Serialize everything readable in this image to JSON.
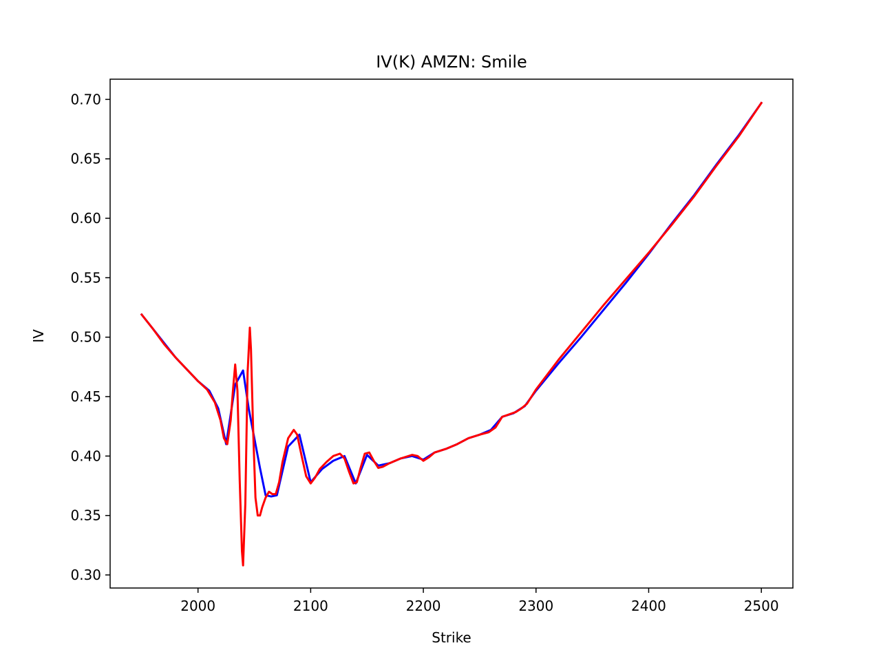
{
  "chart_data": {
    "type": "line",
    "title": "IV(K) AMZN: Smile",
    "xlabel": "Strike",
    "ylabel": "IV",
    "xlim": [
      1922,
      2528
    ],
    "ylim": [
      0.289,
      0.717
    ],
    "xticks": [
      2000,
      2100,
      2200,
      2300,
      2400,
      2500
    ],
    "yticks": [
      0.3,
      0.35,
      0.4,
      0.45,
      0.5,
      0.55,
      0.6,
      0.65,
      0.7
    ],
    "xtick_labels": [
      "2000",
      "2100",
      "2200",
      "2300",
      "2400",
      "2500"
    ],
    "ytick_labels": [
      "0.30",
      "0.35",
      "0.40",
      "0.45",
      "0.50",
      "0.55",
      "0.60",
      "0.65",
      "0.70"
    ],
    "grid": false,
    "colors": {
      "series_1": "#0000ff",
      "series_2": "#ff0000"
    },
    "series": [
      {
        "color": "#0000ff",
        "x": [
          1950,
          1960,
          1970,
          1980,
          1990,
          2000,
          2010,
          2018,
          2025,
          2033,
          2040,
          2045,
          2055,
          2060,
          2065,
          2070,
          2080,
          2090,
          2100,
          2110,
          2120,
          2130,
          2140,
          2150,
          2160,
          2170,
          2180,
          2190,
          2200,
          2210,
          2220,
          2230,
          2240,
          2250,
          2260,
          2270,
          2280,
          2290,
          2300,
          2320,
          2340,
          2360,
          2380,
          2400,
          2420,
          2440,
          2460,
          2480,
          2500
        ],
        "y": [
          0.519,
          0.507,
          0.495,
          0.483,
          0.473,
          0.463,
          0.455,
          0.44,
          0.41,
          0.46,
          0.472,
          0.44,
          0.39,
          0.367,
          0.366,
          0.367,
          0.408,
          0.418,
          0.378,
          0.389,
          0.396,
          0.4,
          0.377,
          0.401,
          0.392,
          0.394,
          0.398,
          0.4,
          0.397,
          0.403,
          0.406,
          0.41,
          0.415,
          0.418,
          0.422,
          0.433,
          0.436,
          0.442,
          0.455,
          0.478,
          0.5,
          0.523,
          0.546,
          0.57,
          0.595,
          0.619,
          0.645,
          0.67,
          0.697
        ]
      },
      {
        "color": "#ff0000",
        "x": [
          1950,
          1960,
          1970,
          1980,
          1990,
          2000,
          2008,
          2015,
          2020,
          2023,
          2026,
          2029,
          2031,
          2033,
          2035,
          2037,
          2039,
          2040,
          2042,
          2044,
          2046,
          2047,
          2049,
          2051,
          2053,
          2055,
          2057,
          2060,
          2063,
          2066,
          2069,
          2072,
          2075,
          2080,
          2085,
          2088,
          2092,
          2096,
          2100,
          2104,
          2108,
          2114,
          2120,
          2126,
          2130,
          2134,
          2138,
          2141,
          2144,
          2148,
          2152,
          2156,
          2160,
          2164,
          2170,
          2180,
          2190,
          2195,
          2200,
          2205,
          2210,
          2220,
          2230,
          2240,
          2250,
          2258,
          2264,
          2270,
          2276,
          2282,
          2287,
          2292,
          2300,
          2320,
          2340,
          2360,
          2380,
          2400,
          2420,
          2440,
          2460,
          2480,
          2500
        ],
        "y": [
          0.519,
          0.507,
          0.494,
          0.483,
          0.473,
          0.463,
          0.456,
          0.445,
          0.43,
          0.415,
          0.41,
          0.43,
          0.455,
          0.477,
          0.455,
          0.38,
          0.32,
          0.308,
          0.36,
          0.47,
          0.508,
          0.49,
          0.42,
          0.365,
          0.35,
          0.35,
          0.357,
          0.365,
          0.37,
          0.368,
          0.368,
          0.378,
          0.395,
          0.415,
          0.422,
          0.418,
          0.4,
          0.383,
          0.377,
          0.382,
          0.389,
          0.395,
          0.4,
          0.402,
          0.398,
          0.387,
          0.377,
          0.378,
          0.389,
          0.402,
          0.403,
          0.396,
          0.39,
          0.391,
          0.394,
          0.398,
          0.401,
          0.4,
          0.396,
          0.399,
          0.403,
          0.406,
          0.41,
          0.415,
          0.418,
          0.42,
          0.424,
          0.433,
          0.435,
          0.437,
          0.44,
          0.444,
          0.456,
          0.481,
          0.504,
          0.527,
          0.549,
          0.571,
          0.594,
          0.618,
          0.644,
          0.669,
          0.697
        ]
      }
    ]
  }
}
